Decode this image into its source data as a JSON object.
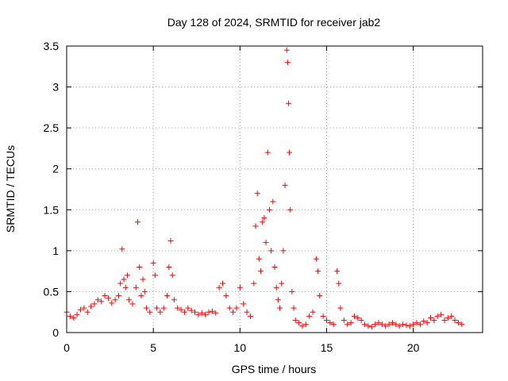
{
  "chart_data": {
    "type": "scatter",
    "title": "Day 128 of 2024, SRMTID for receiver jab2",
    "xlabel": "GPS time / hours",
    "ylabel": "SRMTID / TECUs",
    "xlim": [
      0,
      24
    ],
    "ylim": [
      0,
      3.5
    ],
    "xticks": [
      0,
      5,
      10,
      15,
      20
    ],
    "xtick_labels": [
      "0",
      "5",
      "10",
      "15",
      "20"
    ],
    "yticks": [
      0,
      0.5,
      1,
      1.5,
      2,
      2.5,
      3,
      3.5
    ],
    "ytick_labels": [
      "0",
      "0.5",
      "1",
      "1.5",
      "2",
      "2.5",
      "3",
      "3.5"
    ],
    "grid": true,
    "marker": "+",
    "color": "#ff0000",
    "series": [
      {
        "name": "SRMTID",
        "x": [
          0.0,
          0.2,
          0.4,
          0.6,
          0.8,
          1.0,
          1.2,
          1.4,
          1.6,
          1.8,
          2.0,
          2.2,
          2.4,
          2.6,
          2.8,
          3.0,
          3.1,
          3.2,
          3.3,
          3.4,
          3.5,
          3.6,
          3.8,
          4.0,
          4.1,
          4.2,
          4.3,
          4.4,
          4.5,
          4.6,
          4.8,
          5.0,
          5.1,
          5.2,
          5.4,
          5.6,
          5.8,
          5.9,
          6.0,
          6.1,
          6.2,
          6.4,
          6.6,
          6.8,
          7.0,
          7.2,
          7.4,
          7.6,
          7.8,
          8.0,
          8.2,
          8.4,
          8.6,
          8.8,
          9.0,
          9.2,
          9.4,
          9.6,
          9.8,
          10.0,
          10.2,
          10.4,
          10.6,
          10.8,
          10.9,
          11.0,
          11.1,
          11.2,
          11.3,
          11.4,
          11.5,
          11.6,
          11.7,
          11.8,
          11.9,
          12.0,
          12.1,
          12.2,
          12.3,
          12.4,
          12.5,
          12.6,
          12.7,
          12.75,
          12.8,
          12.85,
          12.9,
          13.0,
          13.1,
          13.2,
          13.4,
          13.6,
          13.8,
          14.0,
          14.2,
          14.4,
          14.5,
          14.6,
          14.8,
          15.0,
          15.2,
          15.4,
          15.6,
          15.7,
          15.8,
          16.0,
          16.2,
          16.4,
          16.6,
          16.8,
          17.0,
          17.2,
          17.4,
          17.6,
          17.8,
          18.0,
          18.2,
          18.4,
          18.6,
          18.8,
          19.0,
          19.2,
          19.4,
          19.6,
          19.8,
          20.0,
          20.2,
          20.4,
          20.6,
          20.8,
          21.0,
          21.2,
          21.4,
          21.6,
          21.8,
          22.0,
          22.2,
          22.4,
          22.6,
          22.8
        ],
        "y": [
          0.25,
          0.2,
          0.18,
          0.22,
          0.28,
          0.3,
          0.25,
          0.32,
          0.35,
          0.4,
          0.38,
          0.45,
          0.42,
          0.36,
          0.4,
          0.45,
          0.6,
          1.02,
          0.65,
          0.55,
          0.7,
          0.4,
          0.35,
          0.55,
          1.35,
          0.8,
          0.45,
          0.65,
          0.5,
          0.3,
          0.25,
          0.85,
          0.7,
          0.3,
          0.25,
          0.3,
          0.45,
          0.8,
          1.12,
          0.7,
          0.4,
          0.3,
          0.28,
          0.25,
          0.3,
          0.27,
          0.25,
          0.22,
          0.24,
          0.22,
          0.25,
          0.26,
          0.24,
          0.55,
          0.6,
          0.45,
          0.3,
          0.25,
          0.3,
          0.55,
          0.35,
          0.25,
          0.2,
          0.6,
          1.3,
          1.7,
          0.9,
          0.75,
          1.35,
          1.4,
          1.1,
          2.2,
          1.5,
          1.0,
          1.6,
          0.8,
          0.55,
          0.4,
          0.3,
          0.6,
          1.0,
          1.8,
          3.45,
          3.3,
          2.8,
          2.2,
          1.5,
          0.5,
          0.3,
          0.15,
          0.12,
          0.08,
          0.1,
          0.2,
          0.25,
          0.9,
          0.75,
          0.45,
          0.2,
          0.15,
          0.12,
          0.1,
          0.75,
          0.6,
          0.3,
          0.15,
          0.1,
          0.12,
          0.2,
          0.18,
          0.15,
          0.1,
          0.08,
          0.07,
          0.1,
          0.12,
          0.1,
          0.08,
          0.1,
          0.12,
          0.1,
          0.08,
          0.1,
          0.09,
          0.08,
          0.1,
          0.12,
          0.1,
          0.14,
          0.12,
          0.18,
          0.15,
          0.2,
          0.22,
          0.15,
          0.18,
          0.2,
          0.15,
          0.12,
          0.1
        ]
      }
    ]
  }
}
